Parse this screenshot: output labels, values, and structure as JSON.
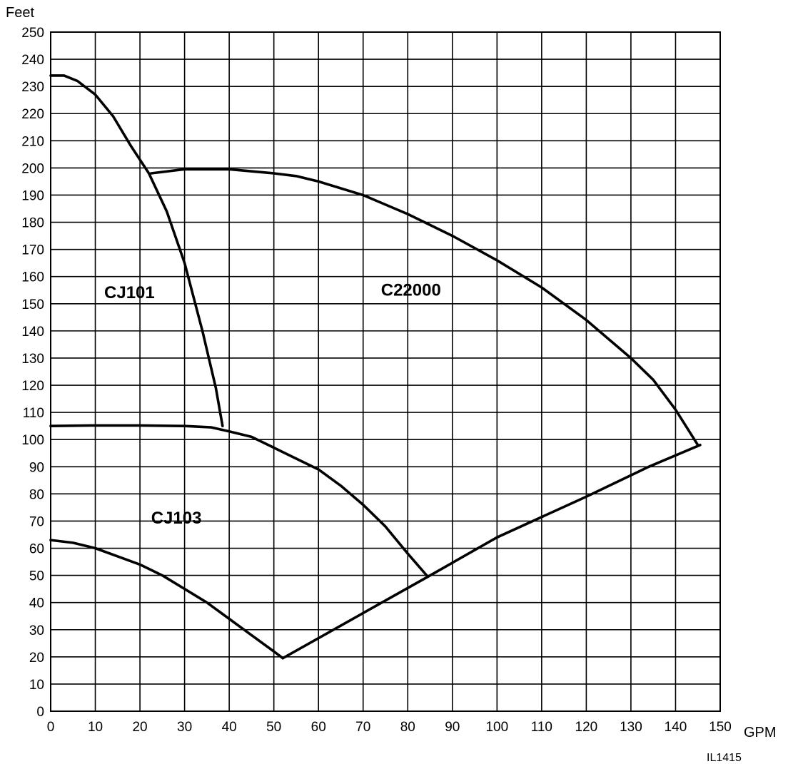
{
  "chart_data": {
    "type": "line",
    "ylabel": "Feet",
    "xlabel": "GPM",
    "footnote": "IL1415",
    "xlim": [
      0,
      150
    ],
    "ylim": [
      0,
      250
    ],
    "x_ticks": [
      0,
      10,
      20,
      30,
      40,
      50,
      60,
      70,
      80,
      90,
      100,
      110,
      120,
      130,
      140,
      150
    ],
    "y_ticks": [
      0,
      10,
      20,
      30,
      40,
      50,
      60,
      70,
      80,
      90,
      100,
      110,
      120,
      130,
      140,
      150,
      160,
      170,
      180,
      190,
      200,
      210,
      220,
      230,
      240,
      250
    ],
    "grid": true,
    "series": [
      {
        "name": "CJ101",
        "points": [
          [
            0,
            234
          ],
          [
            3,
            234
          ],
          [
            6,
            232
          ],
          [
            10,
            227
          ],
          [
            14,
            219
          ],
          [
            18,
            208
          ],
          [
            22,
            198
          ],
          [
            26,
            184
          ],
          [
            30,
            165
          ],
          [
            34,
            140
          ],
          [
            37,
            119
          ],
          [
            38.5,
            105
          ]
        ]
      },
      {
        "name": "C22000",
        "points": [
          [
            22.5,
            198
          ],
          [
            30,
            199.5
          ],
          [
            40,
            199.5
          ],
          [
            50,
            198
          ],
          [
            55,
            197
          ],
          [
            60,
            195
          ],
          [
            70,
            190
          ],
          [
            80,
            183
          ],
          [
            90,
            175
          ],
          [
            100,
            166
          ],
          [
            110,
            156
          ],
          [
            120,
            144
          ],
          [
            130,
            130
          ],
          [
            135,
            122
          ],
          [
            140,
            111
          ],
          [
            145,
            98
          ]
        ]
      },
      {
        "name": "CJ103",
        "points": [
          [
            0,
            105
          ],
          [
            10,
            105.2
          ],
          [
            20,
            105.2
          ],
          [
            30,
            105
          ],
          [
            36,
            104.5
          ],
          [
            40,
            103
          ],
          [
            45,
            101
          ],
          [
            50,
            97
          ],
          [
            55,
            93
          ],
          [
            60,
            89
          ],
          [
            65,
            83
          ],
          [
            70,
            76
          ],
          [
            75,
            68
          ],
          [
            80,
            58
          ],
          [
            84.5,
            49.5
          ]
        ]
      },
      {
        "name": "",
        "points": [
          [
            0,
            63
          ],
          [
            5,
            62
          ],
          [
            10,
            60
          ],
          [
            15,
            57
          ],
          [
            20,
            54
          ],
          [
            25,
            50
          ],
          [
            30,
            45
          ],
          [
            35,
            40
          ],
          [
            40,
            34
          ],
          [
            45,
            28
          ],
          [
            50,
            22
          ],
          [
            52,
            19.5
          ]
        ]
      },
      {
        "name": "",
        "points": [
          [
            52,
            19.5
          ],
          [
            84.5,
            49.5
          ],
          [
            100,
            64
          ],
          [
            120,
            79
          ],
          [
            134,
            90
          ],
          [
            145.5,
            98
          ]
        ]
      }
    ],
    "labels": [
      {
        "text": "CJ101",
        "x": 12,
        "y": 152
      },
      {
        "text": "C22000",
        "x": 74,
        "y": 153
      },
      {
        "text": "CJ103",
        "x": 22.5,
        "y": 69
      }
    ]
  }
}
